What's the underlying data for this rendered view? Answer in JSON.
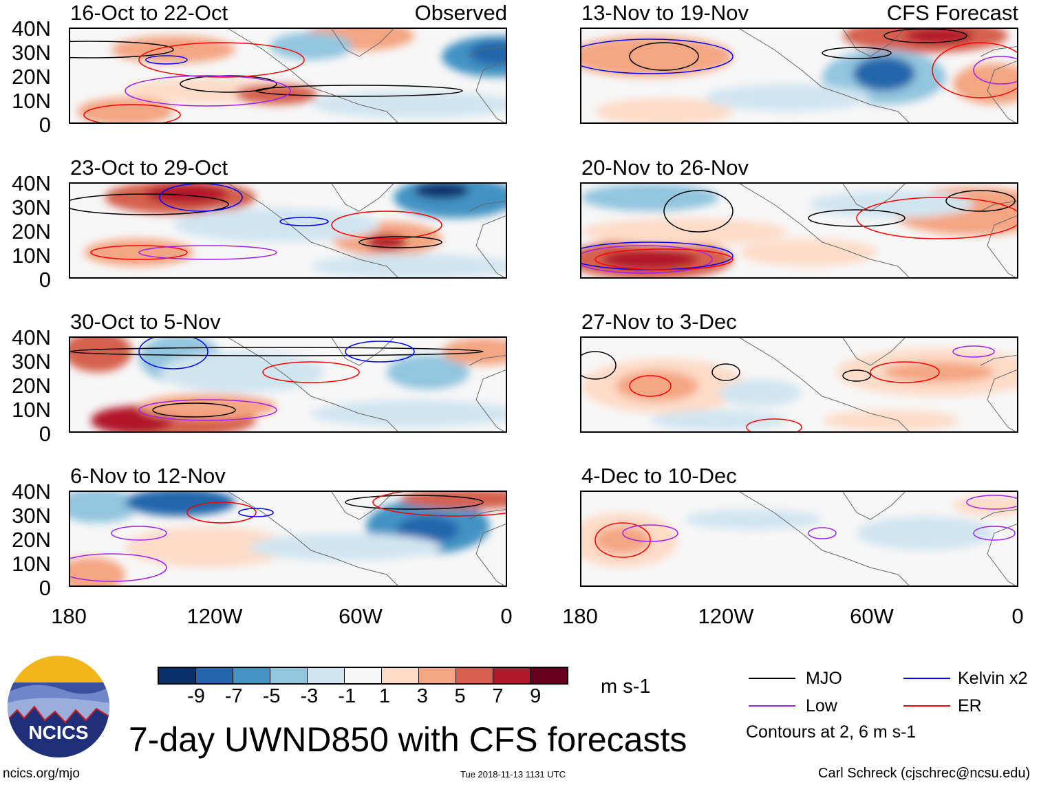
{
  "panels_left": [
    {
      "title": "16-Oct to 22-Oct",
      "tag": "Observed"
    },
    {
      "title": "23-Oct to 29-Oct"
    },
    {
      "title": "30-Oct to 5-Nov"
    },
    {
      "title": "6-Nov to 12-Nov"
    }
  ],
  "panels_right": [
    {
      "title": "13-Nov to 19-Nov",
      "tag": "CFS Forecast"
    },
    {
      "title": "20-Nov to 26-Nov"
    },
    {
      "title": "27-Nov to 3-Dec"
    },
    {
      "title": "4-Dec to 10-Dec"
    }
  ],
  "lat_labels": [
    "40N",
    "30N",
    "20N",
    "10N",
    "0"
  ],
  "lon_labels": [
    "180",
    "120W",
    "60W",
    "0"
  ],
  "colorbar": {
    "colors": [
      "#08306b",
      "#2166ac",
      "#4393c3",
      "#92c5de",
      "#d1e5f0",
      "#f7f7f7",
      "#fddbc7",
      "#f4a582",
      "#d6604d",
      "#b2182b",
      "#67001f"
    ],
    "labels": [
      "-9",
      "-7",
      "-5",
      "-3",
      "-1",
      "1",
      "3",
      "5",
      "7",
      "9"
    ],
    "units": "m s-1"
  },
  "title": "7-day UWND850 with CFS forecasts",
  "legend": {
    "items": [
      {
        "label": "MJO",
        "color": "#000000"
      },
      {
        "label": "Kelvin x2",
        "color": "#0000ff"
      },
      {
        "label": "Low",
        "color": "#a020f0"
      },
      {
        "label": "ER",
        "color": "#ff0000"
      }
    ],
    "note": "Contours at 2, 6 m s-1"
  },
  "logo": "NCICS",
  "footer": {
    "url": "ncics.org/mjo",
    "timestamp": "Tue 2018-11-13 1131 UTC",
    "credit": "Carl Schreck (cjschrec@ncsu.edu)"
  }
}
